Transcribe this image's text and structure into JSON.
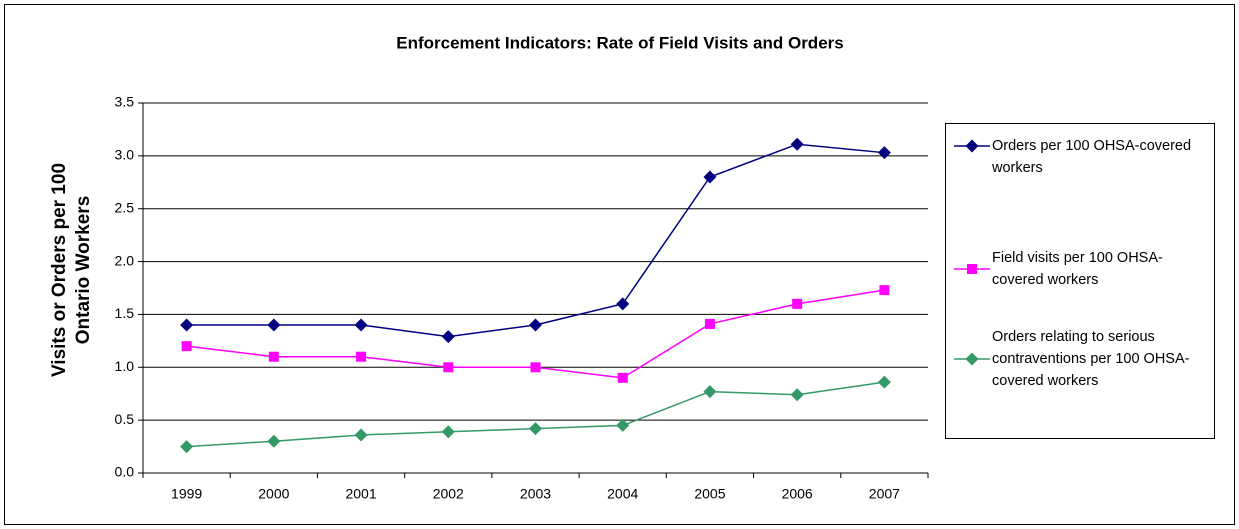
{
  "chart_data": {
    "type": "line",
    "title": "Enforcement Indicators: Rate of Field Visits and Orders",
    "y_label": "Visits or Orders per 100 Ontario Workers",
    "categories": [
      "1999",
      "2000",
      "2001",
      "2002",
      "2003",
      "2004",
      "2005",
      "2006",
      "2007"
    ],
    "series": [
      {
        "name": "Orders per 100 OHSA-covered workers",
        "color": "#000080",
        "marker": "diamond",
        "values": [
          1.4,
          1.4,
          1.4,
          1.29,
          1.4,
          1.6,
          2.8,
          3.11,
          3.03
        ]
      },
      {
        "name": "Field visits per 100 OHSA-covered workers",
        "color": "#ff00ff",
        "marker": "square",
        "values": [
          1.2,
          1.1,
          1.1,
          1.0,
          1.0,
          0.9,
          1.41,
          1.6,
          1.73
        ]
      },
      {
        "name": "Orders relating to serious contraventions per 100 OHSA-covered workers",
        "color": "#339966",
        "marker": "diamond",
        "values": [
          0.25,
          0.3,
          0.36,
          0.39,
          0.42,
          0.45,
          0.77,
          0.74,
          0.86
        ]
      }
    ],
    "ylim": [
      0,
      3.5
    ],
    "yticks": [
      {
        "value": 0,
        "label": "0.0"
      },
      0.5,
      {
        "value": 1,
        "label": "1.0"
      },
      1.5,
      {
        "value": 2,
        "label": "2.0"
      },
      2.5,
      {
        "value": 3,
        "label": "3.0"
      },
      3.5
    ],
    "grid": true,
    "legend": "right"
  }
}
